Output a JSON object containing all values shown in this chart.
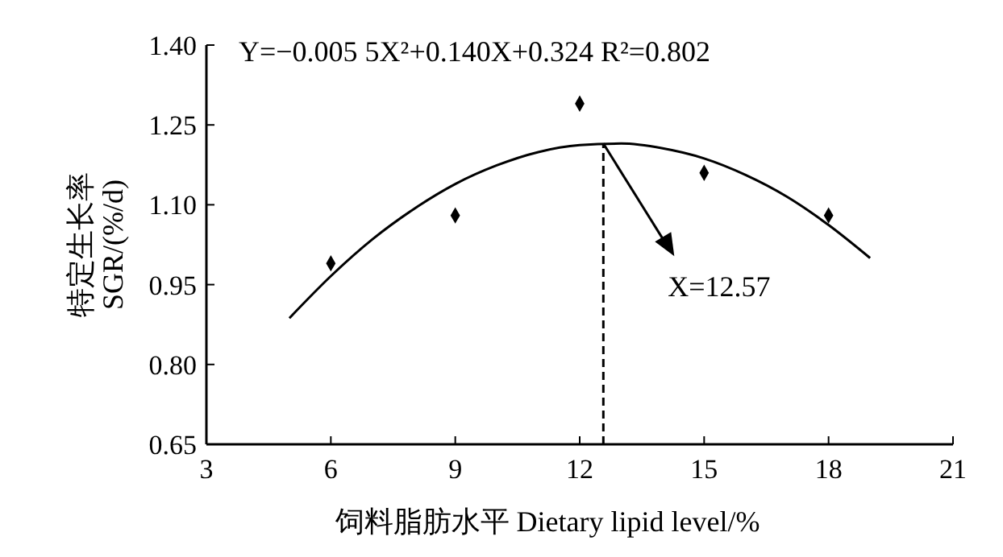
{
  "chart_data": {
    "type": "scatter",
    "xlabel": "饲料脂肪水平  Dietary lipid level/%",
    "ylabel": "特定生长率\nSGR/(%/d)",
    "xlim": [
      3,
      21
    ],
    "xticks": [
      3,
      6,
      9,
      12,
      15,
      18,
      21
    ],
    "ylim": [
      0.65,
      1.4
    ],
    "yticks": [
      {
        "value": 0.65,
        "label": "0.65"
      },
      {
        "value": 0.8,
        "label": "0.80"
      },
      {
        "value": 0.95,
        "label": "0.95"
      },
      {
        "value": 1.1,
        "label": "1.10"
      },
      {
        "value": 1.25,
        "label": "1.25"
      },
      {
        "value": 1.4,
        "label": "1.40"
      }
    ],
    "grid": false,
    "series": [
      {
        "color": "#000000",
        "marker": "diamond",
        "x": [
          6,
          9,
          12,
          15,
          18
        ],
        "values": [
          0.99,
          1.08,
          1.29,
          1.16,
          1.08
        ]
      },
      {
        "type": "line",
        "color": "#000000",
        "marker": "none",
        "line_style": "solid",
        "x": [
          5,
          6,
          7,
          8,
          9,
          10,
          11,
          12,
          13,
          14,
          15,
          16,
          17,
          18,
          19
        ],
        "values": [
          0.887,
          0.966,
          1.035,
          1.092,
          1.139,
          1.174,
          1.199,
          1.212,
          1.215,
          1.206,
          1.187,
          1.156,
          1.115,
          1.062,
          1.0
        ]
      }
    ],
    "ref_lines": [
      {
        "axis": "x",
        "value": 12.57,
        "label": null,
        "color": "#000000",
        "line_style": "dashed"
      }
    ],
    "annotations": [
      "Y=−0.005 5X²+0.140X+0.324  R²=0.802",
      {
        "text": "X=12.57",
        "x": 12.57,
        "y": 1.215
      }
    ]
  }
}
